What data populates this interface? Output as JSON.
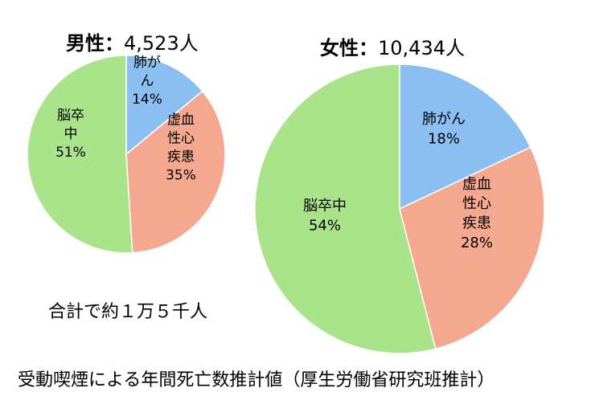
{
  "chart_data": [
    {
      "type": "pie",
      "title_label": "男性：",
      "title_value": "4,523人",
      "slices": [
        {
          "label": [
            "肺が",
            "ん"
          ],
          "value": 14,
          "value_label": "14%",
          "color": "#8bbff2"
        },
        {
          "label": [
            "虚血",
            "性心",
            "疾患"
          ],
          "value": 35,
          "value_label": "35%",
          "color": "#f5a890"
        },
        {
          "label": [
            "脳卒",
            "中"
          ],
          "value": 51,
          "value_label": "51%",
          "color": "#a9e38a"
        }
      ]
    },
    {
      "type": "pie",
      "title_label": "女性：",
      "title_value": "10,434人",
      "slices": [
        {
          "label": [
            "肺がん"
          ],
          "value": 18,
          "value_label": "18%",
          "color": "#8bbff2"
        },
        {
          "label": [
            "虚血",
            "性心",
            "疾患"
          ],
          "value": 28,
          "value_label": "28%",
          "color": "#f5a890"
        },
        {
          "label": [
            "脳卒中"
          ],
          "value": 54,
          "value_label": "54%",
          "color": "#a9e38a"
        }
      ]
    }
  ],
  "total_note": "合計で約１万５千人",
  "caption": "受動喫煙による年間死亡数推計値（厚生労働省研究班推計）"
}
